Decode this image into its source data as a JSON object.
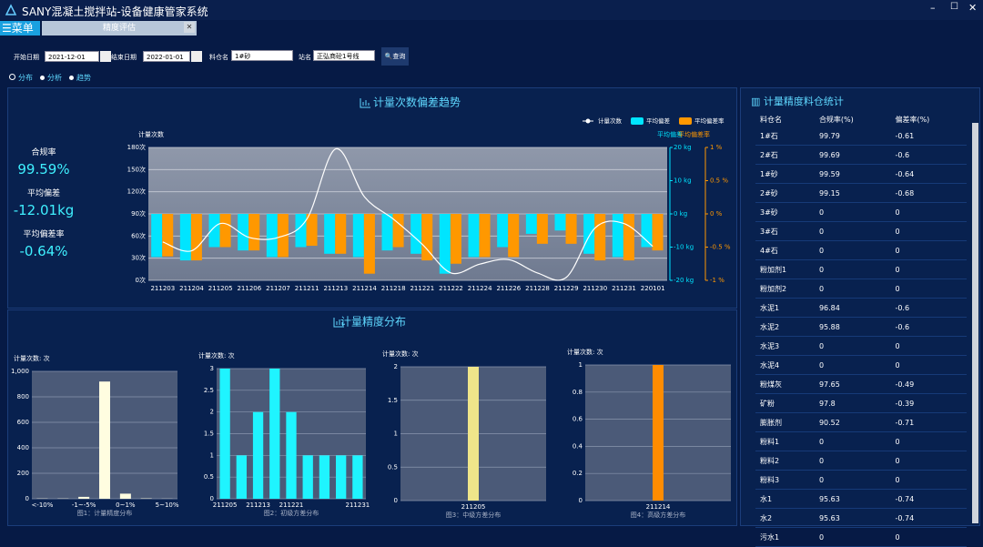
{
  "window": {
    "title": "SANY混凝土搅拌站-设备健康管家系统"
  },
  "menu": {
    "label": "菜单",
    "tab": "精度评估"
  },
  "filters": {
    "start_label": "开始日期",
    "start": "2021-12-01",
    "end_label": "结束日期",
    "end": "2022-01-01",
    "bin_label": "料仓名",
    "bin": "1#砂",
    "station_label": "站名",
    "station": "正弘商砼1号线",
    "query": "查询"
  },
  "view_options": [
    "分布",
    "分析",
    "趋势"
  ],
  "summary": [
    {
      "label": "合规率",
      "value": "99.59%"
    },
    {
      "label": "平均偏差",
      "value": "-12.01kg"
    },
    {
      "label": "平均偏差率",
      "value": "-0.64%"
    }
  ],
  "distribution_title": "计量精度分布",
  "chart_data": [
    {
      "type": "combo",
      "title": "计量次数偏差趋势",
      "categories": [
        "211203",
        "211204",
        "211205",
        "211206",
        "211207",
        "211211",
        "211213",
        "211214",
        "211218",
        "211221",
        "211222",
        "211224",
        "211226",
        "211228",
        "211229",
        "211230",
        "211231",
        "220101"
      ],
      "series": [
        {
          "name": "计量次数",
          "type": "line",
          "color": "#ffffff",
          "values": [
            52,
            40,
            77,
            58,
            58,
            83,
            178,
            113,
            83,
            49,
            10,
            22,
            28,
            10,
            4,
            71,
            77,
            46
          ]
        },
        {
          "name": "平均偏差",
          "type": "bar",
          "axis": "y2",
          "color": "#00e5ff",
          "values": [
            -13,
            -14,
            -10,
            -11,
            -13,
            -10,
            -12,
            -13,
            -11,
            -12,
            -18,
            -13,
            -10,
            -6,
            -5,
            -12,
            -13,
            -10
          ]
        },
        {
          "name": "平均偏差率",
          "type": "bar",
          "axis": "y3",
          "color": "#ff9800",
          "values": [
            -0.64,
            -0.7,
            -0.5,
            -0.55,
            -0.65,
            -0.48,
            -0.6,
            -0.9,
            -0.5,
            -0.7,
            -0.75,
            -0.65,
            -0.65,
            -0.45,
            -0.45,
            -0.7,
            -0.7,
            -0.55
          ]
        }
      ],
      "y_label": "计量次数",
      "y2_label": "平均偏差",
      "y3_label": "平均偏差率",
      "ylim": [
        0,
        180
      ],
      "yticks": [
        {
          "value": 0,
          "label": "0次"
        },
        {
          "value": 30,
          "label": "30次"
        },
        {
          "value": 60,
          "label": "60次"
        },
        {
          "value": 90,
          "label": "90次"
        },
        {
          "value": 120,
          "label": "120次"
        },
        {
          "value": 150,
          "label": "150次"
        },
        {
          "value": 180,
          "label": "180次"
        }
      ],
      "y2lim": [
        -20,
        20
      ],
      "y2ticks": [
        {
          "value": -20,
          "label": "-20 kg"
        },
        {
          "value": -10,
          "label": "-10 kg"
        },
        {
          "value": 0,
          "label": "0 kg"
        },
        {
          "value": 10,
          "label": "10 kg"
        },
        {
          "value": 20,
          "label": "20 kg"
        }
      ],
      "y3lim": [
        -1,
        1
      ],
      "y3ticks": [
        {
          "value": -1,
          "label": "-1 %"
        },
        {
          "value": -0.5,
          "label": "-0.5 %"
        },
        {
          "value": 0,
          "label": "0 %"
        },
        {
          "value": 0.5,
          "label": "0.5 %"
        },
        {
          "value": 1,
          "label": "1 %"
        }
      ],
      "grid": true
    },
    {
      "type": "bar",
      "title": "图1：计量精度分布",
      "y_label": "计量次数: 次",
      "color": "#fffde0",
      "categories": [
        "<-10%",
        null,
        "-1~-5%",
        null,
        "0~1%",
        null,
        "5~10%"
      ],
      "values": [
        2,
        2,
        15,
        920,
        40,
        3,
        1
      ],
      "ylim": [
        0,
        1000
      ],
      "yticks": [
        0,
        200,
        400,
        600,
        800,
        {
          "value": 1000,
          "label": "1,000"
        }
      ]
    },
    {
      "type": "bar",
      "title": "图2：初级方差分布",
      "y_label": "计量次数: 次",
      "color": "#1ff4ff",
      "categories": [
        "211205",
        null,
        "211213",
        null,
        "211221",
        null,
        null,
        null,
        "211231"
      ],
      "values": [
        3,
        1,
        2,
        3,
        2,
        1,
        1,
        1,
        1
      ],
      "ylim": [
        0,
        3
      ],
      "yticks": [
        0,
        0.5,
        1,
        1.5,
        2,
        2.5,
        3
      ]
    },
    {
      "type": "bar",
      "title": "图3：中级方差分布",
      "y_label": "计量次数: 次",
      "color": "#efe58a",
      "categories": [
        "211205"
      ],
      "values": [
        2
      ],
      "ylim": [
        0,
        2
      ],
      "yticks": [
        0,
        0.5,
        1,
        1.5,
        2
      ]
    },
    {
      "type": "bar",
      "title": "图4：高级方差分布",
      "y_label": "计量次数: 次",
      "color": "#ff8c00",
      "categories": [
        "211214"
      ],
      "values": [
        1
      ],
      "ylim": [
        0,
        1
      ],
      "yticks": [
        0,
        0.2,
        0.4,
        0.6,
        0.8,
        1
      ]
    }
  ],
  "table": {
    "title": "计量精度料仓统计",
    "headers": [
      "料仓名",
      "合规率(%)",
      "偏差率(%)"
    ],
    "rows": [
      [
        "1#石",
        99.79,
        -0.61
      ],
      [
        "2#石",
        99.69,
        -0.6
      ],
      [
        "1#砂",
        99.59,
        -0.64
      ],
      [
        "2#砂",
        99.15,
        -0.68
      ],
      [
        "3#砂",
        0,
        0
      ],
      [
        "3#石",
        0,
        0
      ],
      [
        "4#石",
        0,
        0
      ],
      [
        "粉加剂1",
        0,
        0
      ],
      [
        "粉加剂2",
        0,
        0
      ],
      [
        "水泥1",
        96.84,
        -0.6
      ],
      [
        "水泥2",
        95.88,
        -0.6
      ],
      [
        "水泥3",
        0,
        0
      ],
      [
        "水泥4",
        0,
        0
      ],
      [
        "粉煤灰",
        97.65,
        -0.49
      ],
      [
        "矿粉",
        97.8,
        -0.39
      ],
      [
        "膨胀剂",
        90.52,
        -0.71
      ],
      [
        "粉料1",
        0,
        0
      ],
      [
        "粉料2",
        0,
        0
      ],
      [
        "粉料3",
        0,
        0
      ],
      [
        "水1",
        95.63,
        -0.74
      ],
      [
        "水2",
        95.63,
        -0.74
      ],
      [
        "污水1",
        0,
        0
      ]
    ]
  }
}
